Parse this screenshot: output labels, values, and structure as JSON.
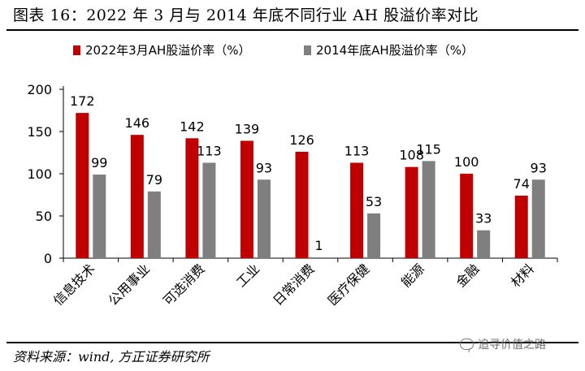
{
  "figure_title": "图表 16：2022 年 3 月与 2014 年底不同行业 AH 股溢价率对比",
  "source_note": "资料来源：wind, 方正证券研究所",
  "watermark": "追寻价值之路",
  "colors": {
    "series_a": "#c00000",
    "series_b": "#7f7f7f",
    "axis": "#000000"
  },
  "chart_data": {
    "type": "bar",
    "title": "",
    "categories": [
      "信息技术",
      "公用事业",
      "可选消费",
      "工业",
      "日常消费",
      "医疗保健",
      "能源",
      "金融",
      "材料"
    ],
    "series": [
      {
        "name": "2022年3月AH股溢价率（%）",
        "values": [
          172,
          146,
          142,
          139,
          126,
          113,
          108,
          100,
          74
        ]
      },
      {
        "name": "2014年底AH股溢价率（%）",
        "values": [
          99,
          79,
          113,
          93,
          1,
          53,
          115,
          33,
          93
        ]
      }
    ],
    "ylim": [
      0,
      200
    ],
    "yticks": [
      0,
      50,
      100,
      150,
      200
    ],
    "xlabel": "",
    "ylabel": "",
    "grid": false,
    "legend_position": "top",
    "data_labels": true
  }
}
